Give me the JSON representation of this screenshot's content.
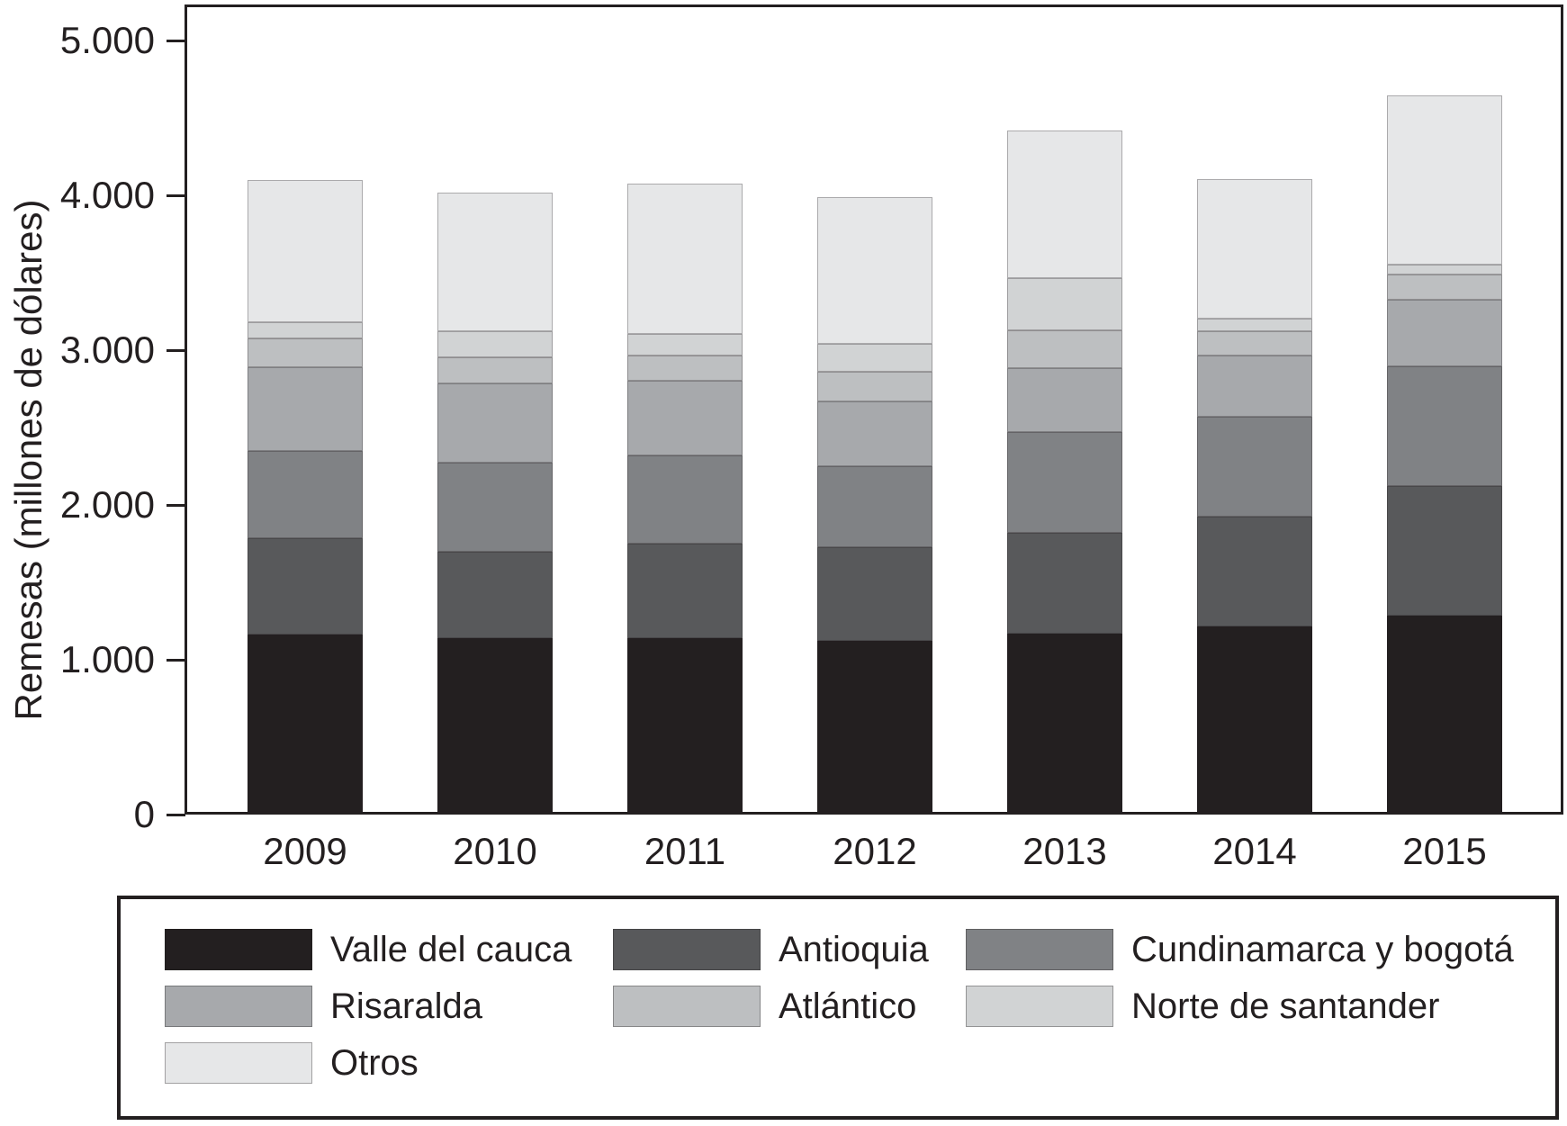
{
  "figure": {
    "background": "#ffffff",
    "frame_color": "#231f20"
  },
  "y_axis": {
    "title": "Remesas (millones de dólares)",
    "tick_labels": [
      "0",
      "1.000",
      "2.000",
      "3.000",
      "4.000",
      "5.000"
    ],
    "tick_values": [
      0,
      1000,
      2000,
      3000,
      4000,
      5000
    ]
  },
  "x_axis": {
    "tick_labels": [
      "2009",
      "2010",
      "2011",
      "2012",
      "2013",
      "2014",
      "2015"
    ]
  },
  "chart_data": {
    "type": "bar",
    "stacked": true,
    "title": "",
    "xlabel": "",
    "ylabel": "Remesas (millones de dólares)",
    "categories": [
      "2009",
      "2010",
      "2011",
      "2012",
      "2013",
      "2014",
      "2015"
    ],
    "ylim": [
      0,
      5000
    ],
    "grid": false,
    "legend_position": "bottom",
    "series": [
      {
        "name": "Valle del cauca",
        "color": "#231f20",
        "values": [
          1145,
          1125,
          1125,
          1105,
          1150,
          1195,
          1265
        ]
      },
      {
        "name": "Antioquia",
        "color": "#58595b",
        "values": [
          625,
          555,
          605,
          605,
          655,
          715,
          840
        ]
      },
      {
        "name": "Cundinamarca y bogotá",
        "color": "#808285",
        "values": [
          560,
          575,
          575,
          520,
          650,
          640,
          775
        ]
      },
      {
        "name": "Risaralda",
        "color": "#a7a9ac",
        "values": [
          540,
          510,
          480,
          420,
          410,
          395,
          430
        ]
      },
      {
        "name": "Atlántico",
        "color": "#bdbfc1",
        "values": [
          190,
          170,
          165,
          195,
          245,
          160,
          160
        ]
      },
      {
        "name": "Norte de santander",
        "color": "#d1d3d4",
        "values": [
          105,
          170,
          135,
          180,
          340,
          80,
          65
        ]
      },
      {
        "name": "Otros",
        "color": "#e6e7e8",
        "values": [
          915,
          895,
          975,
          945,
          950,
          905,
          1095
        ]
      }
    ],
    "totals": [
      4080,
      4000,
      4060,
      3970,
      4400,
      4090,
      4630
    ]
  },
  "legend": {
    "entries": [
      {
        "label": "Valle del cauca",
        "color": "#231f20"
      },
      {
        "label": "Antioquia",
        "color": "#58595b"
      },
      {
        "label": "Cundinamarca y bogotá",
        "color": "#808285"
      },
      {
        "label": "Risaralda",
        "color": "#a7a9ac"
      },
      {
        "label": "Atlántico",
        "color": "#bdbfc1"
      },
      {
        "label": "Norte de santander",
        "color": "#d1d3d4"
      },
      {
        "label": "Otros",
        "color": "#e6e7e8"
      }
    ]
  }
}
